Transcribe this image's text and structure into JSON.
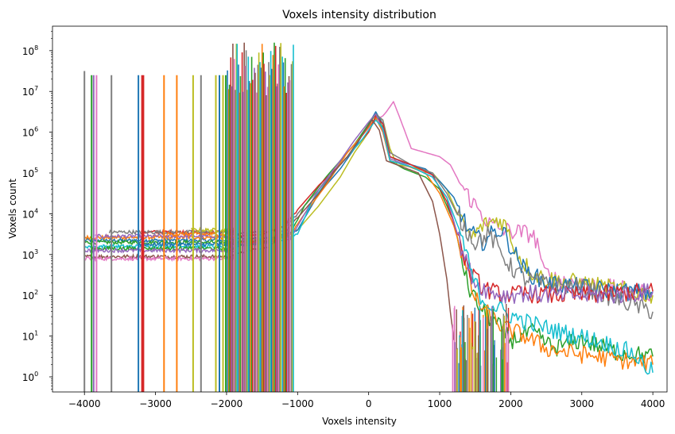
{
  "chart_data": {
    "type": "line",
    "title": "Voxels intensity distribution",
    "xlabel": "Voxels intensity",
    "ylabel": "Voxels count",
    "xlim": [
      -4450,
      4200
    ],
    "ylim_log10": [
      -0.37,
      8.6
    ],
    "yscale": "log",
    "grid": false,
    "legend": "none",
    "x_ticks": [
      {
        "value": -4000,
        "label": "−4000"
      },
      {
        "value": -3000,
        "label": "−3000"
      },
      {
        "value": -2000,
        "label": "−2000"
      },
      {
        "value": -1000,
        "label": "−1000"
      },
      {
        "value": 0,
        "label": "0"
      },
      {
        "value": 1000,
        "label": "1000"
      },
      {
        "value": 2000,
        "label": "2000"
      },
      {
        "value": 3000,
        "label": "3000"
      },
      {
        "value": 4000,
        "label": "4000"
      }
    ],
    "y_ticks": [
      {
        "exp": 0,
        "base": "10",
        "sup": "0"
      },
      {
        "exp": 1,
        "base": "10",
        "sup": "1"
      },
      {
        "exp": 2,
        "base": "10",
        "sup": "2"
      },
      {
        "exp": 3,
        "base": "10",
        "sup": "3"
      },
      {
        "exp": 4,
        "base": "10",
        "sup": "4"
      },
      {
        "exp": 5,
        "base": "10",
        "sup": "5"
      },
      {
        "exp": 6,
        "base": "10",
        "sup": "6"
      },
      {
        "exp": 7,
        "base": "10",
        "sup": "7"
      },
      {
        "exp": 8,
        "base": "10",
        "sup": "8"
      }
    ],
    "palette": [
      "#1f77b4",
      "#ff7f0e",
      "#2ca02c",
      "#d62728",
      "#9467bd",
      "#8c564b",
      "#e377c2",
      "#7f7f7f",
      "#bcbd22",
      "#17becf"
    ],
    "series": [
      {
        "color": "#e377c2",
        "x": [
          -1900,
          -1400,
          -1200,
          -1000,
          -700,
          -400,
          -200,
          0,
          100,
          200,
          250,
          350,
          450,
          600,
          800,
          1000,
          1150,
          1300,
          1500,
          1700,
          1900,
          2100,
          2300,
          2400,
          2450,
          2600,
          3000,
          3500,
          4000
        ],
        "y_log10": [
          3.2,
          3.3,
          3.6,
          4.0,
          4.6,
          5.3,
          5.7,
          6.1,
          6.3,
          6.4,
          6.5,
          6.75,
          6.3,
          5.6,
          5.5,
          5.4,
          5.2,
          4.7,
          4.2,
          3.75,
          3.6,
          3.55,
          3.5,
          3.2,
          2.6,
          2.4,
          2.3,
          2.15,
          2.05
        ]
      },
      {
        "color": "#bcbd22",
        "x": [
          -1900,
          -1400,
          -1200,
          -1000,
          -700,
          -400,
          -200,
          0,
          100,
          200,
          300,
          400,
          600,
          900,
          1100,
          1300,
          1450,
          1600,
          1800,
          1900,
          2000,
          2100,
          2300,
          2500,
          3000,
          3500,
          4000
        ],
        "y_log10": [
          3.3,
          3.4,
          3.5,
          3.6,
          4.2,
          4.9,
          5.5,
          6.0,
          6.35,
          6.3,
          5.6,
          5.2,
          5.15,
          5.0,
          4.6,
          3.8,
          3.4,
          3.7,
          3.85,
          3.8,
          3.4,
          3.0,
          2.55,
          2.4,
          2.3,
          2.15,
          2.0
        ]
      },
      {
        "color": "#1f77b4",
        "x": [
          -1900,
          -1400,
          -1200,
          -1000,
          -700,
          -400,
          -200,
          0,
          100,
          200,
          300,
          500,
          800,
          1000,
          1200,
          1400,
          1600,
          1800,
          1900,
          2000,
          2200,
          2500,
          3000,
          3500,
          4000
        ],
        "y_log10": [
          3.4,
          3.4,
          3.45,
          3.6,
          4.5,
          5.1,
          5.6,
          6.2,
          6.5,
          6.2,
          5.4,
          5.25,
          5.1,
          4.8,
          4.4,
          3.6,
          3.3,
          3.6,
          3.55,
          3.2,
          2.6,
          2.3,
          2.2,
          2.1,
          2.05
        ]
      },
      {
        "color": "#7f7f7f",
        "x": [
          -1900,
          -1300,
          -1100,
          -800,
          -500,
          -300,
          -100,
          100,
          200,
          300,
          600,
          900,
          1100,
          1300,
          1500,
          1700,
          1800,
          2000,
          2200,
          2600,
          3000,
          3500,
          4000
        ],
        "y_log10": [
          3.5,
          3.6,
          3.8,
          4.4,
          5.0,
          5.5,
          5.9,
          6.45,
          6.3,
          5.5,
          5.2,
          5.0,
          4.5,
          3.8,
          3.3,
          3.5,
          3.2,
          2.7,
          2.4,
          2.25,
          2.2,
          1.9,
          1.6
        ]
      },
      {
        "color": "#2ca02c",
        "x": [
          -1900,
          -1400,
          -1100,
          -900,
          -600,
          -400,
          -200,
          0,
          100,
          200,
          300,
          500,
          800,
          1000,
          1200,
          1300,
          1400,
          1600,
          1800,
          2000,
          2300,
          2600,
          3000,
          3500,
          4000
        ],
        "y_log10": [
          3.3,
          3.35,
          3.5,
          4.2,
          4.9,
          5.3,
          5.7,
          6.2,
          6.45,
          6.1,
          5.3,
          5.1,
          4.9,
          4.6,
          3.8,
          3.0,
          2.2,
          1.6,
          1.3,
          0.9,
          1.1,
          0.7,
          0.9,
          0.6,
          0.5
        ]
      },
      {
        "color": "#ff7f0e",
        "x": [
          -1900,
          -1400,
          -1100,
          -900,
          -600,
          -300,
          -100,
          100,
          200,
          300,
          500,
          800,
          1000,
          1200,
          1350,
          1500,
          1700,
          1900,
          2200,
          2500,
          2800,
          3200,
          3600,
          4000
        ],
        "y_log10": [
          3.3,
          3.3,
          3.5,
          4.0,
          4.7,
          5.5,
          5.9,
          6.35,
          6.0,
          5.3,
          5.2,
          5.0,
          4.5,
          3.7,
          2.8,
          1.9,
          1.5,
          1.2,
          1.0,
          0.7,
          0.6,
          0.5,
          0.4,
          0.3
        ]
      },
      {
        "color": "#d62728",
        "x": [
          -1900,
          -1500,
          -1200,
          -1000,
          -700,
          -400,
          -200,
          0,
          100,
          200,
          300,
          600,
          900,
          1100,
          1250,
          1400,
          1600,
          1800,
          2000,
          2200,
          2600,
          3000,
          3500,
          4000
        ],
        "y_log10": [
          3.45,
          3.5,
          3.7,
          4.1,
          4.7,
          5.2,
          5.6,
          6.0,
          6.4,
          6.2,
          5.4,
          5.2,
          4.95,
          4.3,
          3.5,
          2.6,
          2.2,
          2.05,
          2.0,
          2.05,
          2.0,
          2.0,
          2.05,
          2.1
        ]
      },
      {
        "color": "#9467bd",
        "x": [
          -1900,
          -1400,
          -1100,
          -900,
          -700,
          -400,
          -200,
          0,
          100,
          200,
          300,
          600,
          900,
          1100,
          1200,
          1350,
          1500,
          1700,
          1900,
          2200,
          2600,
          3000,
          3500,
          4000
        ],
        "y_log10": [
          3.25,
          3.3,
          3.4,
          4.0,
          4.6,
          5.3,
          5.8,
          6.25,
          6.45,
          6.05,
          5.35,
          5.15,
          4.9,
          4.4,
          3.8,
          2.9,
          2.3,
          2.1,
          2.0,
          2.05,
          2.0,
          2.0,
          2.0,
          2.1
        ]
      },
      {
        "color": "#17becf",
        "x": [
          -1900,
          -1300,
          -1000,
          -800,
          -500,
          -300,
          -100,
          100,
          200,
          300,
          600,
          900,
          1100,
          1300,
          1450,
          1600,
          1800,
          2000,
          2300,
          2700,
          3200,
          3700,
          4000
        ],
        "y_log10": [
          3.2,
          3.3,
          3.5,
          4.3,
          5.0,
          5.4,
          5.8,
          6.3,
          6.1,
          5.3,
          5.15,
          4.9,
          4.4,
          3.5,
          2.5,
          1.9,
          1.7,
          1.5,
          1.3,
          1.1,
          0.9,
          0.6,
          0.1
        ]
      },
      {
        "color": "#8c564b",
        "x": [
          -1900,
          -1400,
          -1200,
          -1000,
          -700,
          -500,
          -300,
          -100,
          50,
          150,
          250,
          400,
          700,
          900,
          1000,
          1100,
          1150,
          1200
        ],
        "y_log10": [
          3.0,
          3.2,
          3.5,
          3.9,
          4.5,
          5.0,
          5.4,
          5.9,
          6.3,
          6.05,
          5.3,
          5.2,
          5.0,
          4.3,
          3.5,
          2.4,
          1.6,
          0.9
        ]
      }
    ],
    "left_series": [
      {
        "color": "#1f77b4",
        "start": -4000,
        "level": 3.35
      },
      {
        "color": "#ff7f0e",
        "start": -4000,
        "level": 3.42
      },
      {
        "color": "#2ca02c",
        "start": -4000,
        "level": 3.3
      },
      {
        "color": "#d62728",
        "start": -3200,
        "level": 3.55
      },
      {
        "color": "#9467bd",
        "start": -3850,
        "level": 3.45
      },
      {
        "color": "#8c564b",
        "start": -4000,
        "level": 2.95
      },
      {
        "color": "#e377c2",
        "start": -4000,
        "level": 2.9
      },
      {
        "color": "#7f7f7f",
        "start": -3650,
        "level": 3.55
      },
      {
        "color": "#bcbd22",
        "start": -2500,
        "level": 3.6
      },
      {
        "color": "#17becf",
        "start": -4000,
        "level": 3.2
      },
      {
        "color": "#1f77b4",
        "start": -3250,
        "level": 3.25
      },
      {
        "color": "#ff7f0e",
        "start": -2850,
        "level": 3.5
      },
      {
        "color": "#2ca02c",
        "start": -3900,
        "level": 3.15
      },
      {
        "color": "#9467bd",
        "start": -4000,
        "level": 3.1
      }
    ],
    "left_spikes": [
      {
        "x": -4000,
        "color": "#7f7f7f",
        "top": 7.5
      },
      {
        "x": -3900,
        "color": "#2ca02c",
        "top": 7.4
      },
      {
        "x": -3870,
        "color": "#9467bd",
        "top": 7.4
      },
      {
        "x": -3830,
        "color": "#e377c2",
        "top": 7.4
      },
      {
        "x": -3620,
        "color": "#7f7f7f",
        "top": 7.4
      },
      {
        "x": -3240,
        "color": "#1f77b4",
        "top": 7.4
      },
      {
        "x": -3190,
        "color": "#d62728",
        "top": 7.4
      },
      {
        "x": -3170,
        "color": "#d62728",
        "top": 7.4
      },
      {
        "x": -2880,
        "color": "#ff7f0e",
        "top": 7.4
      },
      {
        "x": -2700,
        "color": "#ff7f0e",
        "top": 7.4
      },
      {
        "x": -2470,
        "color": "#bcbd22",
        "top": 7.4
      },
      {
        "x": -2360,
        "color": "#7f7f7f",
        "top": 7.4
      },
      {
        "x": -2150,
        "color": "#bcbd22",
        "top": 7.4
      },
      {
        "x": -2100,
        "color": "#1f77b4",
        "top": 7.4
      },
      {
        "x": -2050,
        "color": "#bcbd22",
        "top": 7.4
      },
      {
        "x": -2010,
        "color": "#2ca02c",
        "top": 7.4
      }
    ],
    "cluster_spikes": {
      "x_start": -1990,
      "x_end": -1060,
      "count": 60,
      "top_min": 6.9,
      "top_max": 8.2
    }
  }
}
